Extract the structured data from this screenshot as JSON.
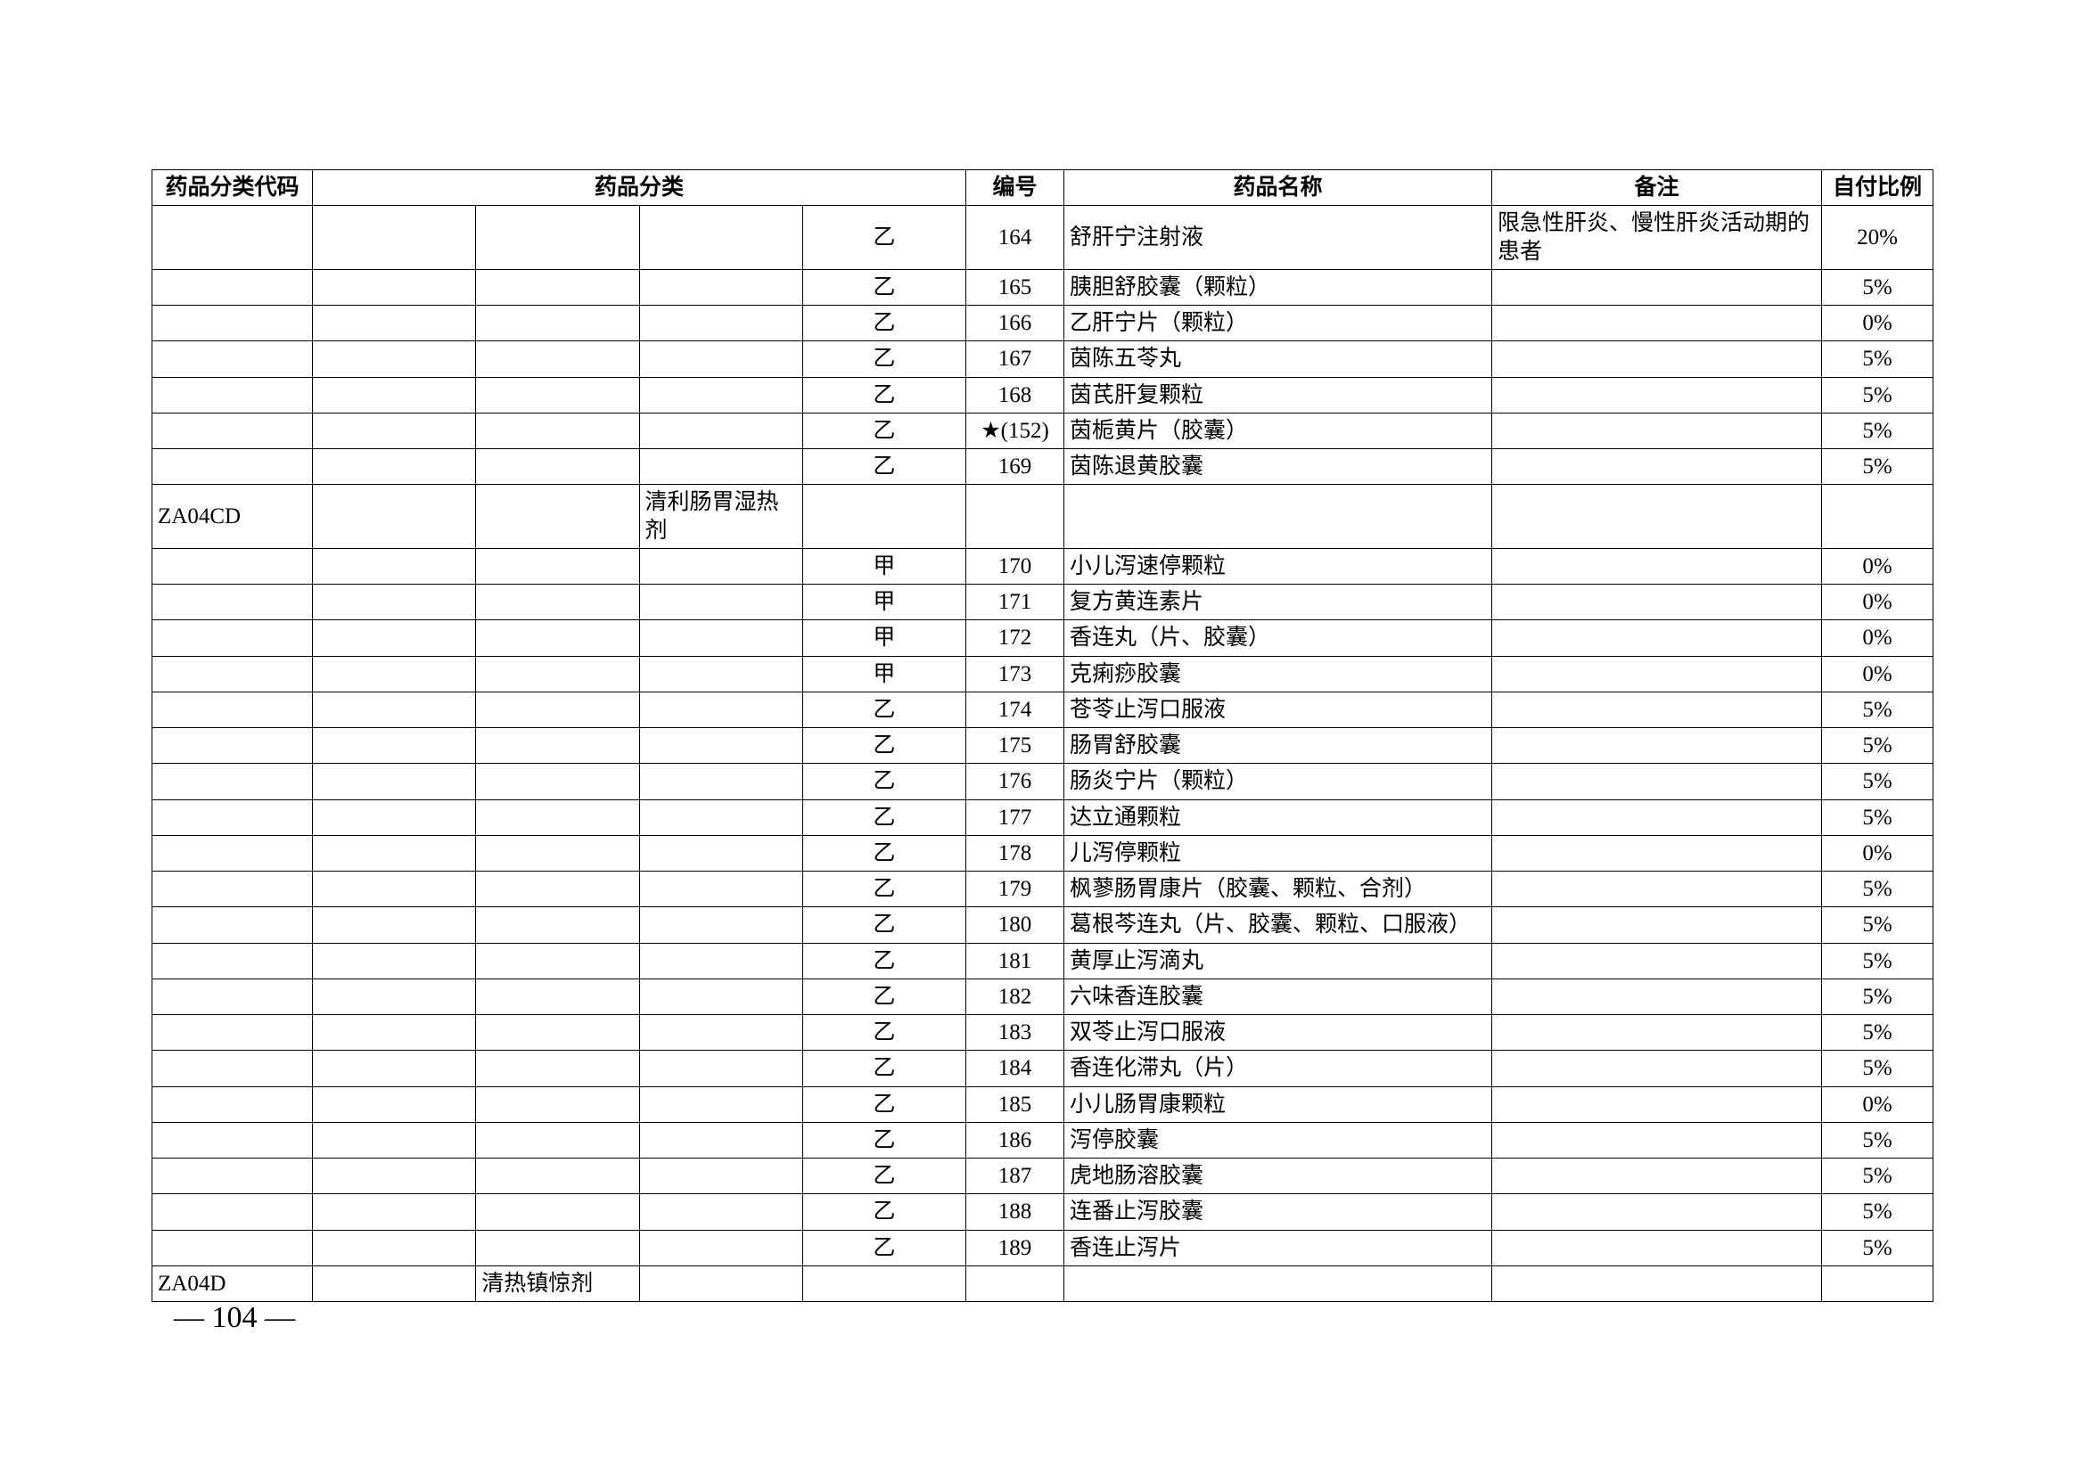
{
  "headers": {
    "code": "药品分类代码",
    "category": "药品分类",
    "number": "编号",
    "name": "药品名称",
    "note": "备注",
    "ratio": "自付比例"
  },
  "rows": [
    {
      "code": "",
      "cat1": "",
      "cat2": "",
      "cat3": "",
      "grade": "乙",
      "num": "164",
      "name": "舒肝宁注射液",
      "note": "限急性肝炎、慢性肝炎活动期的患者",
      "ratio": "20%"
    },
    {
      "code": "",
      "cat1": "",
      "cat2": "",
      "cat3": "",
      "grade": "乙",
      "num": "165",
      "name": "胰胆舒胶囊（颗粒）",
      "note": "",
      "ratio": "5%"
    },
    {
      "code": "",
      "cat1": "",
      "cat2": "",
      "cat3": "",
      "grade": "乙",
      "num": "166",
      "name": "乙肝宁片（颗粒）",
      "note": "",
      "ratio": "0%"
    },
    {
      "code": "",
      "cat1": "",
      "cat2": "",
      "cat3": "",
      "grade": "乙",
      "num": "167",
      "name": "茵陈五苓丸",
      "note": "",
      "ratio": "5%"
    },
    {
      "code": "",
      "cat1": "",
      "cat2": "",
      "cat3": "",
      "grade": "乙",
      "num": "168",
      "name": "茵芪肝复颗粒",
      "note": "",
      "ratio": "5%"
    },
    {
      "code": "",
      "cat1": "",
      "cat2": "",
      "cat3": "",
      "grade": "乙",
      "num": "★(152)",
      "name": "茵栀黄片（胶囊）",
      "note": "",
      "ratio": "5%"
    },
    {
      "code": "",
      "cat1": "",
      "cat2": "",
      "cat3": "",
      "grade": "乙",
      "num": "169",
      "name": "茵陈退黄胶囊",
      "note": "",
      "ratio": "5%"
    },
    {
      "code": "ZA04CD",
      "cat1": "",
      "cat2": "",
      "cat3": "清利肠胃湿热剂",
      "grade": "",
      "num": "",
      "name": "",
      "note": "",
      "ratio": ""
    },
    {
      "code": "",
      "cat1": "",
      "cat2": "",
      "cat3": "",
      "grade": "甲",
      "num": "170",
      "name": "小儿泻速停颗粒",
      "note": "",
      "ratio": "0%"
    },
    {
      "code": "",
      "cat1": "",
      "cat2": "",
      "cat3": "",
      "grade": "甲",
      "num": "171",
      "name": "复方黄连素片",
      "note": "",
      "ratio": "0%"
    },
    {
      "code": "",
      "cat1": "",
      "cat2": "",
      "cat3": "",
      "grade": "甲",
      "num": "172",
      "name": "香连丸（片、胶囊）",
      "note": "",
      "ratio": "0%"
    },
    {
      "code": "",
      "cat1": "",
      "cat2": "",
      "cat3": "",
      "grade": "甲",
      "num": "173",
      "name": "克痢痧胶囊",
      "note": "",
      "ratio": "0%"
    },
    {
      "code": "",
      "cat1": "",
      "cat2": "",
      "cat3": "",
      "grade": "乙",
      "num": "174",
      "name": "苍苓止泻口服液",
      "note": "",
      "ratio": "5%"
    },
    {
      "code": "",
      "cat1": "",
      "cat2": "",
      "cat3": "",
      "grade": "乙",
      "num": "175",
      "name": "肠胃舒胶囊",
      "note": "",
      "ratio": "5%"
    },
    {
      "code": "",
      "cat1": "",
      "cat2": "",
      "cat3": "",
      "grade": "乙",
      "num": "176",
      "name": "肠炎宁片（颗粒）",
      "note": "",
      "ratio": "5%"
    },
    {
      "code": "",
      "cat1": "",
      "cat2": "",
      "cat3": "",
      "grade": "乙",
      "num": "177",
      "name": "达立通颗粒",
      "note": "",
      "ratio": "5%"
    },
    {
      "code": "",
      "cat1": "",
      "cat2": "",
      "cat3": "",
      "grade": "乙",
      "num": "178",
      "name": "儿泻停颗粒",
      "note": "",
      "ratio": "0%"
    },
    {
      "code": "",
      "cat1": "",
      "cat2": "",
      "cat3": "",
      "grade": "乙",
      "num": "179",
      "name": "枫蓼肠胃康片（胶囊、颗粒、合剂）",
      "note": "",
      "ratio": "5%"
    },
    {
      "code": "",
      "cat1": "",
      "cat2": "",
      "cat3": "",
      "grade": "乙",
      "num": "180",
      "name": "葛根芩连丸（片、胶囊、颗粒、口服液）",
      "note": "",
      "ratio": "5%"
    },
    {
      "code": "",
      "cat1": "",
      "cat2": "",
      "cat3": "",
      "grade": "乙",
      "num": "181",
      "name": "黄厚止泻滴丸",
      "note": "",
      "ratio": "5%"
    },
    {
      "code": "",
      "cat1": "",
      "cat2": "",
      "cat3": "",
      "grade": "乙",
      "num": "182",
      "name": "六味香连胶囊",
      "note": "",
      "ratio": "5%"
    },
    {
      "code": "",
      "cat1": "",
      "cat2": "",
      "cat3": "",
      "grade": "乙",
      "num": "183",
      "name": "双苓止泻口服液",
      "note": "",
      "ratio": "5%"
    },
    {
      "code": "",
      "cat1": "",
      "cat2": "",
      "cat3": "",
      "grade": "乙",
      "num": "184",
      "name": "香连化滞丸（片）",
      "note": "",
      "ratio": "5%"
    },
    {
      "code": "",
      "cat1": "",
      "cat2": "",
      "cat3": "",
      "grade": "乙",
      "num": "185",
      "name": "小儿肠胃康颗粒",
      "note": "",
      "ratio": "0%"
    },
    {
      "code": "",
      "cat1": "",
      "cat2": "",
      "cat3": "",
      "grade": "乙",
      "num": "186",
      "name": "泻停胶囊",
      "note": "",
      "ratio": "5%"
    },
    {
      "code": "",
      "cat1": "",
      "cat2": "",
      "cat3": "",
      "grade": "乙",
      "num": "187",
      "name": "虎地肠溶胶囊",
      "note": "",
      "ratio": "5%"
    },
    {
      "code": "",
      "cat1": "",
      "cat2": "",
      "cat3": "",
      "grade": "乙",
      "num": "188",
      "name": "连番止泻胶囊",
      "note": "",
      "ratio": "5%"
    },
    {
      "code": "",
      "cat1": "",
      "cat2": "",
      "cat3": "",
      "grade": "乙",
      "num": "189",
      "name": "香连止泻片",
      "note": "",
      "ratio": "5%"
    },
    {
      "code": "ZA04D",
      "cat1": "",
      "cat2": "清热镇惊剂",
      "cat3": "",
      "grade": "",
      "num": "",
      "name": "",
      "note": "",
      "ratio": ""
    }
  ],
  "pageNumber": "— 104 —",
  "style": {
    "background_color": "#ffffff",
    "border_color": "#000000",
    "text_color": "#000000",
    "header_fontweight": "bold",
    "cell_fontsize": 25,
    "page_num_fontsize": 34
  }
}
